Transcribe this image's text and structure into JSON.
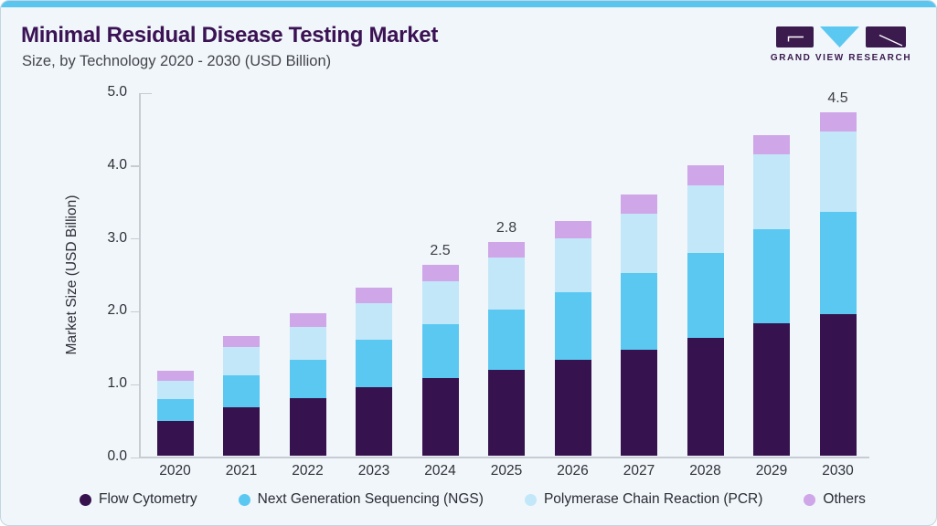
{
  "header": {
    "title": "Minimal Residual Disease Testing Market",
    "subtitle": "Size, by Technology 2020 - 2030 (USD Billion)",
    "logo_text": "GRAND VIEW RESEARCH"
  },
  "colors": {
    "accent_bar": "#5ac6f0",
    "card_background": "#f0f6fa",
    "title_text": "#3b1254",
    "axis_line": "#c7ccd3",
    "logo_purple": "#3b1a4e",
    "logo_blue": "#5bc8f2"
  },
  "chart_data": {
    "type": "bar",
    "stacked": true,
    "title": "Minimal Residual Disease Testing Market Size, by Technology 2020 - 2030 (USD Billion)",
    "xlabel": "",
    "ylabel": "Market Size (USD Billion)",
    "ylim": [
      0.0,
      5.0
    ],
    "yticks": [
      "0.0",
      "1.0",
      "2.0",
      "3.0",
      "4.0",
      "5.0"
    ],
    "grid": false,
    "legend_position": "bottom",
    "categories": [
      "2020",
      "2021",
      "2022",
      "2023",
      "2024",
      "2025",
      "2026",
      "2027",
      "2028",
      "2029",
      "2030"
    ],
    "series": [
      {
        "name": "Flow Cytometry",
        "color": "#36134e",
        "values": [
          0.45,
          0.63,
          0.75,
          0.9,
          1.02,
          1.13,
          1.26,
          1.39,
          1.55,
          1.74,
          1.86
        ]
      },
      {
        "name": "Next Generation Sequencing (NGS)",
        "color": "#5bc8f2",
        "values": [
          0.29,
          0.43,
          0.51,
          0.62,
          0.7,
          0.79,
          0.88,
          1.0,
          1.11,
          1.23,
          1.34
        ]
      },
      {
        "name": "Polymerase Chain Reaction (PCR)",
        "color": "#c2e7f9",
        "values": [
          0.24,
          0.36,
          0.43,
          0.48,
          0.57,
          0.68,
          0.71,
          0.79,
          0.88,
          0.98,
          1.05
        ]
      },
      {
        "name": "Others",
        "color": "#cfa6e7",
        "values": [
          0.14,
          0.15,
          0.18,
          0.2,
          0.21,
          0.2,
          0.23,
          0.25,
          0.27,
          0.25,
          0.25
        ]
      }
    ],
    "totals_shown": {
      "2024": "2.5",
      "2025": "2.8",
      "2030": "4.5"
    }
  }
}
